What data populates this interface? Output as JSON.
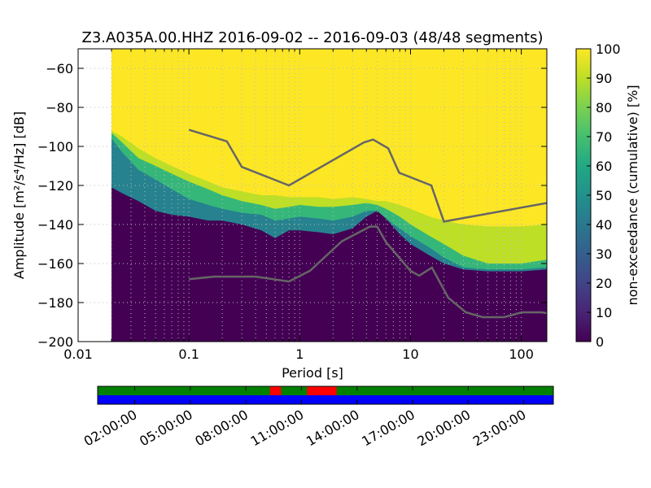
{
  "chart_data": [
    {
      "type": "heatmap",
      "title": "Z3.A035A.00.HHZ   2016-09-02 -- 2016-09-03  (48/48 segments)",
      "xlabel": "Period [s]",
      "ylabel": "Amplitude [m²/s⁴/Hz] [dB]",
      "xscale": "log",
      "xlim": [
        0.01,
        170
      ],
      "ylim": [
        -200,
        -50
      ],
      "grid": true,
      "x_tick_labels": [
        "0.01",
        "0.1",
        "1",
        "10",
        "100"
      ],
      "y_tick_labels": [
        "−60",
        "−80",
        "−100",
        "−120",
        "−140",
        "−160",
        "−180",
        "−200"
      ],
      "y_ticks": [
        -60,
        -80,
        -100,
        -120,
        -140,
        -160,
        -180,
        -200
      ],
      "colorbar": {
        "label": "non-exceedance (cumulative) [%]",
        "range": [
          0,
          100
        ],
        "tick_labels": [
          "0",
          "10",
          "20",
          "30",
          "40",
          "50",
          "60",
          "70",
          "80",
          "90",
          "100"
        ],
        "ticks": [
          0,
          10,
          20,
          30,
          40,
          50,
          60,
          70,
          80,
          90,
          100
        ]
      },
      "data_start_period": 0.02,
      "percentile_boundaries": {
        "period": [
          0.02,
          0.025,
          0.035,
          0.05,
          0.07,
          0.1,
          0.15,
          0.2,
          0.3,
          0.45,
          0.6,
          0.8,
          1.0,
          1.5,
          2.0,
          3.0,
          4.0,
          5.0,
          6.0,
          8.0,
          10.0,
          15.0,
          20.0,
          30.0,
          50.0,
          100.0,
          170.0
        ],
        "p5": [
          -121,
          -124,
          -128,
          -133,
          -135,
          -136,
          -138,
          -138,
          -140,
          -143,
          -147,
          -143,
          -143,
          -144,
          -145,
          -142,
          -136,
          -133,
          -137,
          -145,
          -150,
          -156,
          -160,
          -163,
          -164,
          -164,
          -163
        ],
        "p50": [
          -96,
          -103,
          -112,
          -117,
          -122,
          -127,
          -130,
          -132,
          -134,
          -135,
          -138,
          -137,
          -136,
          -137,
          -138,
          -136,
          -133,
          -133,
          -137,
          -142,
          -146,
          -152,
          -157,
          -162,
          -163,
          -163,
          -162
        ],
        "p70": [
          -93,
          -98,
          -106,
          -110,
          -114,
          -118,
          -122,
          -125,
          -128,
          -130,
          -132,
          -131,
          -130,
          -131,
          -131,
          -130,
          -129,
          -130,
          -132,
          -136,
          -140,
          -146,
          -150,
          -156,
          -160,
          -160,
          -158
        ],
        "p90": [
          -92,
          -95,
          -101,
          -106,
          -110,
          -114,
          -118,
          -121,
          -123,
          -125,
          -125,
          -126,
          -126,
          -126,
          -127,
          -126,
          -127,
          -128,
          -128,
          -130,
          -132,
          -136,
          -138,
          -140,
          -141,
          -141,
          -140
        ]
      },
      "noise_model_high": {
        "period": [
          0.1,
          0.22,
          0.3,
          0.8,
          3.8,
          4.6,
          6.3,
          7.9,
          15.4,
          20.0,
          170.0
        ],
        "amplitude": [
          -91.5,
          -97.4,
          -110.5,
          -120.0,
          -97.9,
          -96.5,
          -101.0,
          -113.5,
          -120.0,
          -138.5,
          -129.0
        ]
      },
      "noise_model_low": {
        "period": [
          0.1,
          0.17,
          0.4,
          0.8,
          1.24,
          2.4,
          4.3,
          5.0,
          6.0,
          10.0,
          12.0,
          15.6,
          21.9,
          31.6,
          45.0,
          70.0,
          101.0,
          154.0,
          170.0
        ],
        "amplitude": [
          -168.0,
          -166.7,
          -166.7,
          -169.2,
          -163.7,
          -148.6,
          -141.1,
          -141.1,
          -149.0,
          -163.8,
          -166.2,
          -162.1,
          -177.5,
          -185.0,
          -187.5,
          -187.5,
          -185.0,
          -185.0,
          -185.5
        ]
      },
      "colors": {
        "p0_5": "#440154",
        "p5_50": "#26828e",
        "p50_70": "#35b779",
        "p70_90": "#bddf26",
        "p90_100": "#fde725",
        "noise_model": "#666666"
      }
    },
    {
      "type": "timeline",
      "x_tick_labels": [
        "02:00:00",
        "05:00:00",
        "08:00:00",
        "11:00:00",
        "14:00:00",
        "17:00:00",
        "20:00:00",
        "23:00:00"
      ],
      "x_ticks_hours": [
        2,
        5,
        8,
        11,
        14,
        17,
        20,
        23
      ],
      "range_hours": [
        0,
        24.6
      ],
      "rows": {
        "top_default_color": "#008000",
        "top_red_segments_hours": [
          [
            9.3,
            9.9
          ],
          [
            11.3,
            12.9
          ]
        ],
        "bottom_color": "#0000ff",
        "red_color": "#ff0000"
      }
    }
  ]
}
